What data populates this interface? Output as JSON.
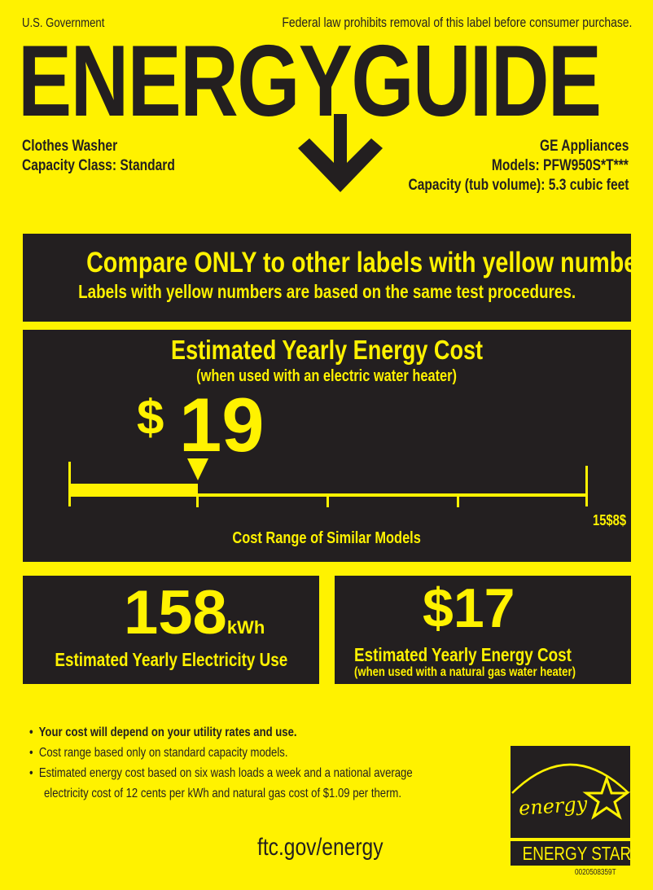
{
  "header": {
    "government": "U.S. Government",
    "federal_notice": "Federal law prohibits removal of this label before consumer purchase.",
    "title": "ENERGYGUIDE"
  },
  "product": {
    "type": "Clothes Washer",
    "capacity_class": "Capacity Class: Standard",
    "brand": "GE Appliances",
    "models": "Models: PFW950S*T***",
    "capacity": "Capacity (tub volume): 5.3 cubic feet"
  },
  "compare": {
    "line1": "Compare ONLY to other labels with yellow numbers.",
    "line2": "Labels with yellow numbers are based on the same test procedures."
  },
  "cost": {
    "title": "Estimated Yearly Energy Cost",
    "subtitle": "(when used with an electric water heater)",
    "dollar_sign": "$",
    "value": "19",
    "range_label": "Cost Range of Similar Models",
    "range_max_text": "15$8$",
    "marker_fraction": 0.25
  },
  "electricity": {
    "value": "158",
    "unit": "kWh",
    "label": "Estimated Yearly Electricity Use"
  },
  "gas_cost": {
    "value": "$17",
    "title": "Estimated Yearly Energy Cost",
    "subtitle": "(when used with a natural gas water heater)"
  },
  "notes": [
    "Your cost will depend on your utility rates and use.",
    "Cost range based only on standard capacity models.",
    "Estimated energy cost based on six wash loads a week and a national average",
    "electricity cost of 12 cents per kWh and natural gas cost of $1.09 per therm."
  ],
  "bullet": "•",
  "website": "ftc.gov/energy",
  "energy_star": {
    "script": "energy",
    "label": "ENERGY STAR",
    "code": "0020508359T"
  },
  "colors": {
    "background": "#fff200",
    "dark": "#231f20"
  }
}
